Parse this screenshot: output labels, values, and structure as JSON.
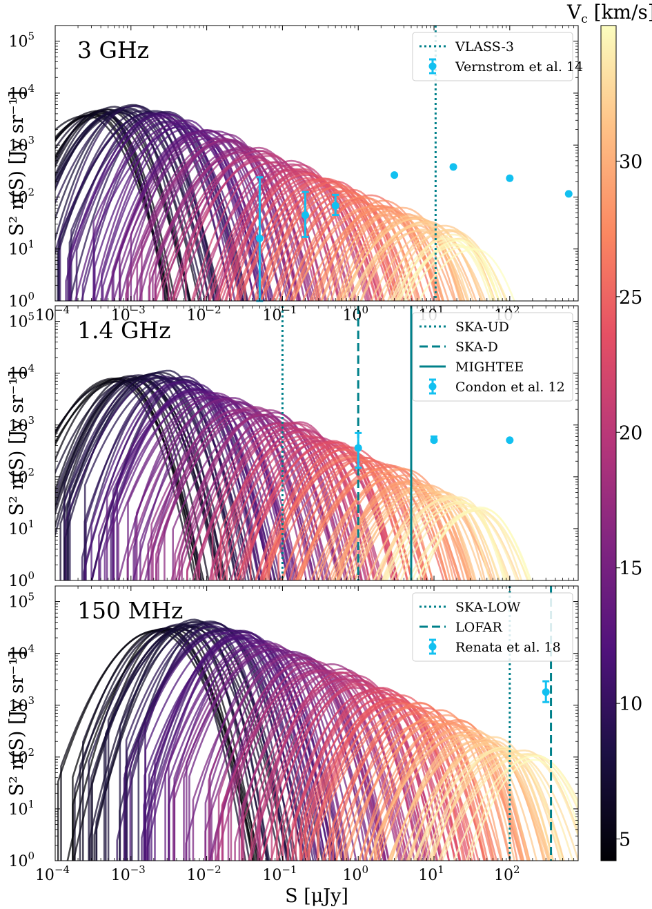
{
  "chart_data": [
    {
      "type": "line",
      "panel": "3 GHz",
      "ylabel": "S² n(S) [Jy sr⁻¹]",
      "xlabel": "",
      "x_scale": "log",
      "y_scale": "log",
      "xlim": [
        0.0001,
        800
      ],
      "ylim": [
        1,
        200000
      ],
      "x_ticks": [
        {
          "base": "10",
          "exp": "−4"
        },
        {
          "base": "10",
          "exp": "−3"
        },
        {
          "base": "10",
          "exp": "−2"
        },
        {
          "base": "10",
          "exp": "−1"
        },
        {
          "base": "10",
          "exp": "0"
        },
        {
          "base": "10",
          "exp": "1"
        },
        {
          "base": "10",
          "exp": "2"
        }
      ],
      "y_ticks": [
        {
          "base": "10",
          "exp": "0"
        },
        {
          "base": "10",
          "exp": "1"
        },
        {
          "base": "10",
          "exp": "2"
        },
        {
          "base": "10",
          "exp": "3"
        },
        {
          "base": "10",
          "exp": "4"
        },
        {
          "base": "10",
          "exp": "5"
        }
      ],
      "model_curves": {
        "description": "S² n(S) model tracks coloured by V_c",
        "peak_min_S": 0.0003,
        "peak_max_S": 30,
        "peak_base": 5500,
        "vline_styles": [
          "dotted"
        ]
      },
      "vlines": [
        {
          "name": "VLASS-3",
          "x": 10.5,
          "style": "dotted"
        }
      ],
      "observations": {
        "name": "Vernstrom et al. 14",
        "points": [
          {
            "x": 0.05,
            "y": 16,
            "ylo": 1,
            "yhi": 240
          },
          {
            "x": 0.2,
            "y": 45,
            "ylo": 17,
            "yhi": 125
          },
          {
            "x": 0.5,
            "y": 68,
            "ylo": 45,
            "yhi": 110
          },
          {
            "x": 3,
            "y": 265
          },
          {
            "x": 18,
            "y": 380
          },
          {
            "x": 100,
            "y": 230
          },
          {
            "x": 600,
            "y": 115
          }
        ]
      },
      "legend": [
        {
          "label": "VLASS-3",
          "style": "dotted"
        },
        {
          "label": "Vernstrom et al. 14",
          "style": "errorbar"
        }
      ],
      "legend_position": "top-right"
    },
    {
      "type": "line",
      "panel": "1.4 GHz",
      "ylabel": "S² n(S) [Jy sr⁻¹]",
      "xlabel": "",
      "x_scale": "log",
      "y_scale": "log",
      "xlim": [
        0.0001,
        800
      ],
      "ylim": [
        1,
        200000
      ],
      "x_ticks": [],
      "y_ticks": [
        {
          "base": "10",
          "exp": "0"
        },
        {
          "base": "10",
          "exp": "1"
        },
        {
          "base": "10",
          "exp": "2"
        },
        {
          "base": "10",
          "exp": "3"
        },
        {
          "base": "10",
          "exp": "4"
        },
        {
          "base": "10",
          "exp": "5"
        }
      ],
      "model_curves": {
        "description": "S² n(S) model tracks coloured by V_c",
        "peak_min_S": 0.0006,
        "peak_max_S": 40,
        "peak_base": 10000
      },
      "vlines": [
        {
          "name": "SKA-UD",
          "x": 0.1,
          "style": "dotted"
        },
        {
          "name": "SKA-D",
          "x": 1,
          "style": "dashed"
        },
        {
          "name": "MIGHTEE",
          "x": 5,
          "style": "solid"
        }
      ],
      "observations": {
        "name": "Condon et al. 12",
        "points": [
          {
            "x": 1,
            "y": 360,
            "ylo": 150,
            "yhi": 700
          },
          {
            "x": 10,
            "y": 510,
            "ylo": 480,
            "yhi": 600
          },
          {
            "x": 100,
            "y": 510
          }
        ]
      },
      "legend": [
        {
          "label": "SKA-UD",
          "style": "dotted"
        },
        {
          "label": "SKA-D",
          "style": "dashed"
        },
        {
          "label": "MIGHTEE",
          "style": "solid"
        },
        {
          "label": "Condon et al. 12",
          "style": "errorbar"
        }
      ],
      "legend_position": "top-right"
    },
    {
      "type": "line",
      "panel": "150 MHz",
      "ylabel": "S² n(S) [Jy sr⁻¹]",
      "xlabel": "S [μJy]",
      "x_scale": "log",
      "y_scale": "log",
      "xlim": [
        0.0001,
        800
      ],
      "ylim": [
        1,
        200000
      ],
      "x_ticks": [
        {
          "base": "10",
          "exp": "−4"
        },
        {
          "base": "10",
          "exp": "−3"
        },
        {
          "base": "10",
          "exp": "−2"
        },
        {
          "base": "10",
          "exp": "−1"
        },
        {
          "base": "10",
          "exp": "0"
        },
        {
          "base": "10",
          "exp": "1"
        },
        {
          "base": "10",
          "exp": "2"
        }
      ],
      "y_ticks": [
        {
          "base": "10",
          "exp": "0"
        },
        {
          "base": "10",
          "exp": "1"
        },
        {
          "base": "10",
          "exp": "2"
        },
        {
          "base": "10",
          "exp": "3"
        },
        {
          "base": "10",
          "exp": "4"
        },
        {
          "base": "10",
          "exp": "5"
        }
      ],
      "model_curves": {
        "description": "S² n(S) model tracks coloured by V_c",
        "peak_min_S": 0.0025,
        "peak_max_S": 200,
        "peak_base": 40000
      },
      "vlines": [
        {
          "name": "SKA-LOW",
          "x": 100,
          "style": "dotted"
        },
        {
          "name": "LOFAR",
          "x": 350,
          "style": "dashed"
        }
      ],
      "observations": {
        "name": "Renata et al. 18",
        "points": [
          {
            "x": 300,
            "y": 1800,
            "ylo": 1150,
            "yhi": 2900
          }
        ]
      },
      "legend": [
        {
          "label": "SKA-LOW",
          "style": "dotted"
        },
        {
          "label": "LOFAR",
          "style": "dashed"
        },
        {
          "label": "Renata et al. 18",
          "style": "errorbar"
        }
      ],
      "legend_position": "top-right"
    }
  ],
  "colorbar": {
    "title": "V",
    "title_sub": "c",
    "title_unit": " [km/s]",
    "colormap": "magma",
    "range": [
      4.2,
      35
    ],
    "ticks": [
      "5",
      "10",
      "15",
      "20",
      "25",
      "30"
    ]
  },
  "colors": {
    "observations": "#12c0f0",
    "vlines": "#00808a"
  }
}
